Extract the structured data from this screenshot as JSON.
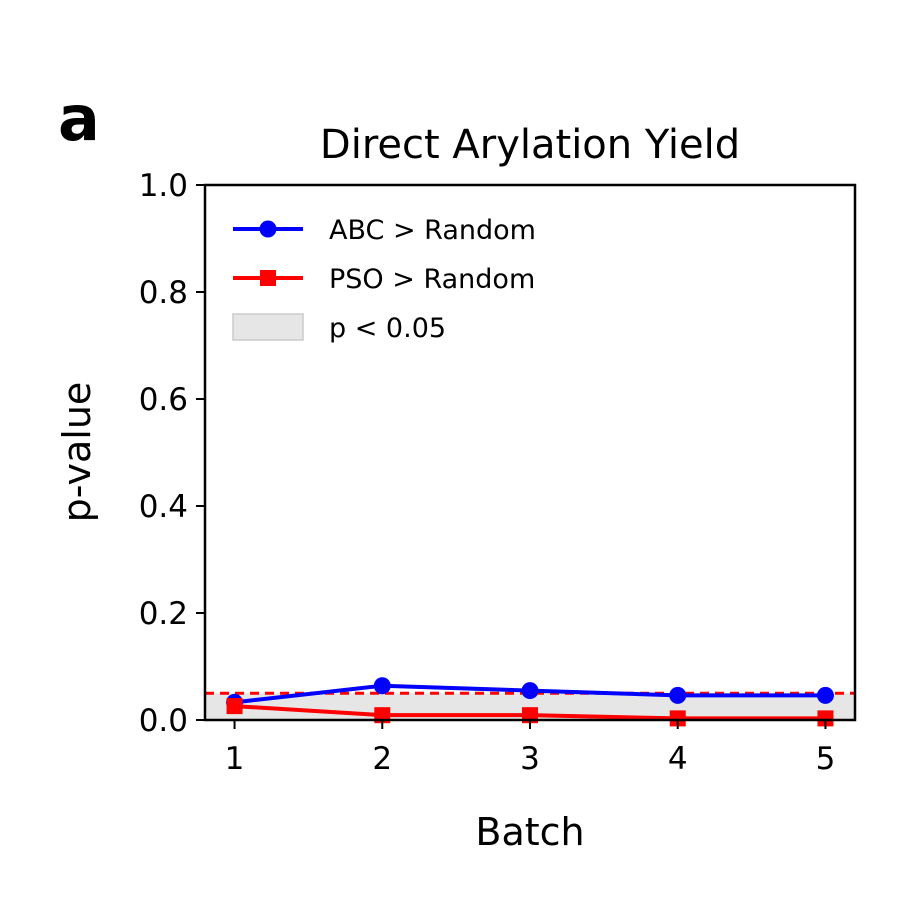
{
  "panel_label": "a",
  "chart_data": {
    "type": "line",
    "title": "Direct Arylation Yield",
    "xlabel": "Batch",
    "ylabel": "p-value",
    "x": [
      1,
      2,
      3,
      4,
      5
    ],
    "xlim": [
      0.8,
      5.2
    ],
    "ylim": [
      0.0,
      1.0
    ],
    "xticks": [
      1,
      2,
      3,
      4,
      5
    ],
    "yticks": [
      0.0,
      0.2,
      0.4,
      0.6,
      0.8,
      1.0
    ],
    "xtick_labels": [
      "1",
      "2",
      "3",
      "4",
      "5"
    ],
    "ytick_labels": [
      "0.0",
      "0.2",
      "0.4",
      "0.6",
      "0.8",
      "1.0"
    ],
    "grid": false,
    "legend_position": "top-left",
    "series": [
      {
        "name": "ABC > Random",
        "color": "#0000ff",
        "marker": "circle",
        "values": [
          0.033,
          0.064,
          0.055,
          0.046,
          0.046
        ]
      },
      {
        "name": "PSO > Random",
        "color": "#ff0000",
        "marker": "square",
        "values": [
          0.026,
          0.009,
          0.009,
          0.003,
          0.003
        ]
      }
    ],
    "threshold": {
      "value": 0.05,
      "color": "#ff0000",
      "style": "dashed"
    },
    "shaded_region": {
      "label": "p < 0.05",
      "from": 0.0,
      "to": 0.05,
      "color": "#e6e6e6"
    }
  }
}
